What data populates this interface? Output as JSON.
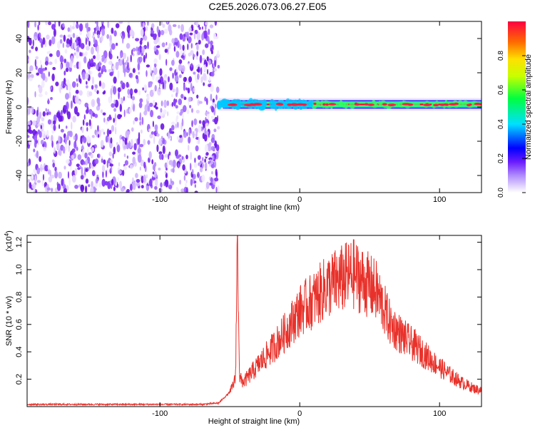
{
  "title": "C2E5.2026.073.06.27.E05",
  "chart_data": [
    {
      "type": "heatmap",
      "name": "spectrogram",
      "xlabel": "Height of straight line (km)",
      "ylabel": "Frequency (Hz)",
      "xlim": [
        -195,
        130
      ],
      "ylim": [
        -50,
        50
      ],
      "xticks": [
        -100,
        0,
        100
      ],
      "xtick_labels": [
        "-100",
        "0",
        "100"
      ],
      "yticks": [
        -40,
        -20,
        0,
        20,
        40
      ],
      "ytick_labels": [
        "-40",
        "-20",
        "0",
        "20",
        "40"
      ],
      "noise_region_x": [
        -195,
        -58
      ],
      "signal_band": {
        "x": [
          -58,
          130
        ],
        "center_hz": 1.5
      },
      "colorbar": {
        "label": "Normalized spectral amplitude",
        "range": [
          0,
          1
        ],
        "ticks": [
          0.0,
          0.2,
          0.4,
          0.6,
          0.8
        ],
        "tick_labels": [
          "0.0",
          "0.2",
          "0.4",
          "0.6",
          "0.8"
        ]
      }
    },
    {
      "type": "line",
      "name": "snr",
      "xlabel": "Height of straight line (km)",
      "ylabel": "SNR (10 * v/v)",
      "scale_label": "(x10",
      "scale_exp": "4",
      "scale_close": ")",
      "xlim": [
        -195,
        130
      ],
      "ylim": [
        0,
        1.25
      ],
      "xticks": [
        -100,
        0,
        100
      ],
      "xtick_labels": [
        "-100",
        "0",
        "100"
      ],
      "yticks": [
        0.2,
        0.4,
        0.6,
        0.8,
        1.0,
        1.2
      ],
      "ytick_labels": [
        "0.2",
        "0.4",
        "0.6",
        "0.8",
        "1.0",
        "1.2"
      ],
      "series": [
        {
          "name": "SNR",
          "color": "#e8312a",
          "x": [
            -195,
            -150,
            -100,
            -70,
            -58,
            -50,
            -46,
            -44.5,
            -43,
            -40,
            -30,
            -20,
            -10,
            0,
            10,
            20,
            30,
            38,
            45,
            55,
            65,
            75,
            85,
            95,
            105,
            115,
            125,
            130
          ],
          "y": [
            0.01,
            0.01,
            0.01,
            0.01,
            0.02,
            0.1,
            0.2,
            1.25,
            0.2,
            0.18,
            0.3,
            0.42,
            0.55,
            0.7,
            0.78,
            0.88,
            0.93,
            0.97,
            0.92,
            0.84,
            0.6,
            0.5,
            0.42,
            0.33,
            0.25,
            0.18,
            0.13,
            0.12
          ]
        }
      ]
    }
  ]
}
